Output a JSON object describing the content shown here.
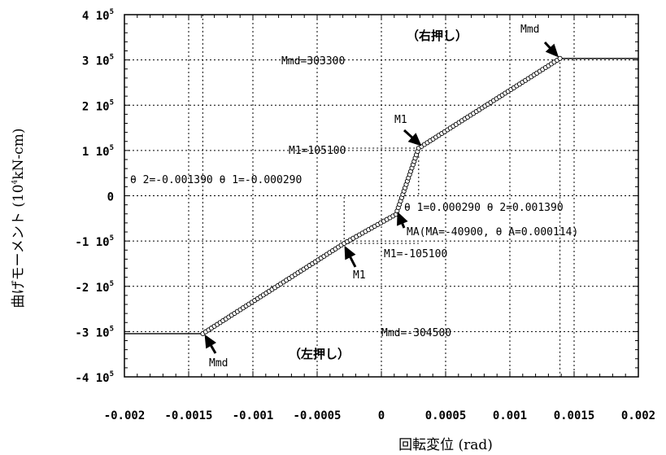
{
  "chart_data": {
    "type": "line",
    "xlabel": "回転変位 (rad)",
    "ylabel_main": "曲げモーメント (10",
    "ylabel_sup": "4",
    "ylabel_tail": "kN-cm)",
    "xlim": [
      -0.002,
      0.002
    ],
    "ylim": [
      -400000,
      400000
    ],
    "x_ticks": [
      -0.002,
      -0.0015,
      -0.001,
      -0.0005,
      0,
      0.0005,
      0.001,
      0.0015,
      0.002
    ],
    "x_tick_labels": [
      "-0.002",
      "-0.0015",
      "-0.001",
      "-0.0005",
      "0",
      "0.0005",
      "0.001",
      "0.0015",
      "0.002"
    ],
    "y_ticks": [
      {
        "value": 400000,
        "base": "4 10",
        "exp": "5"
      },
      {
        "value": 300000,
        "base": "3 10",
        "exp": "5"
      },
      {
        "value": 200000,
        "base": "2 10",
        "exp": "5"
      },
      {
        "value": 100000,
        "base": "1 10",
        "exp": "5"
      },
      {
        "value": 0,
        "base": "0",
        "exp": ""
      },
      {
        "value": -100000,
        "base": "-1 10",
        "exp": "5"
      },
      {
        "value": -200000,
        "base": "-2 10",
        "exp": "5"
      },
      {
        "value": -300000,
        "base": "-3 10",
        "exp": "5"
      },
      {
        "value": -400000,
        "base": "-4 10",
        "exp": "5"
      }
    ],
    "grid": true,
    "series": [
      {
        "points": [
          [
            -0.002,
            -304500
          ],
          [
            -0.00139,
            -304500
          ],
          [
            -0.00029,
            -105100
          ],
          [
            0.000114,
            -40900
          ],
          [
            0.00029,
            105100
          ],
          [
            0.00139,
            303300
          ],
          [
            0.002,
            303300
          ]
        ]
      }
    ],
    "reference_lines": {
      "x": [
        0.00029,
        0.00139,
        -0.00029,
        -0.00139
      ],
      "y": [
        303300,
        105100,
        -105100,
        -304500
      ]
    },
    "annotations": {
      "right_push": "（右押し）",
      "left_push": "（左押し）",
      "mmd_pos": "Mmd=303300",
      "mmd_neg": "Mmd=-304500",
      "m1_pos": "M1=105100",
      "m1_neg": "M1=-105100",
      "theta_neg": "θ 2=-0.001390 θ 1=-0.000290",
      "theta_pos": "θ 1=0.000290 θ 2=0.001390",
      "ma": "MA(MA=-40900, θ A=0.000114)",
      "mmd_tag_top": "Mmd",
      "mmd_tag_bottom": "Mmd",
      "m1_tag_top": "M1",
      "m1_tag_bottom": "M1"
    }
  }
}
